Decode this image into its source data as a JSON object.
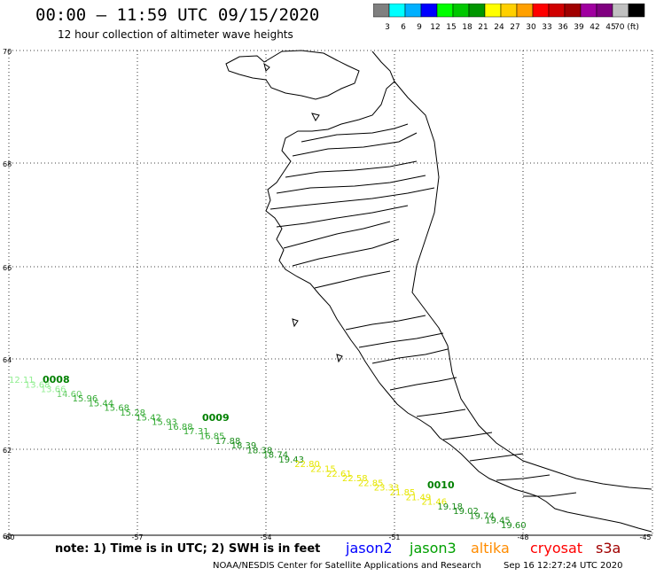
{
  "header": {
    "title": "00:00 – 11:59 UTC 09/15/2020",
    "subtitle": "12 hour collection of altimeter wave heights"
  },
  "legend": {
    "colors": [
      "#808080",
      "#00ffff",
      "#00b0ff",
      "#0000ff",
      "#00ff00",
      "#00c800",
      "#009600",
      "#ffff00",
      "#ffd000",
      "#ffa000",
      "#ff0000",
      "#d00000",
      "#a00000",
      "#a000a0",
      "#800080",
      "#c0c0c0",
      "#000000"
    ],
    "labels": [
      "3",
      "6",
      "9",
      "12",
      "15",
      "18",
      "21",
      "24",
      "27",
      "30",
      "33",
      "36",
      "39",
      "42",
      "45",
      "70 (ft)"
    ]
  },
  "map": {
    "lat_labels": [
      "70",
      "68",
      "66",
      "64",
      "62",
      "60"
    ],
    "lon_labels": [
      "-60",
      "-57",
      "-54",
      "-51",
      "-48",
      "-45"
    ],
    "passes": [
      {
        "id": "0008",
        "color": "#008000"
      },
      {
        "id": "0009",
        "color": "#008000"
      },
      {
        "id": "0010",
        "color": "#008000"
      }
    ],
    "track_values": [
      {
        "v": "12.11",
        "c": "#90ee90"
      },
      {
        "v": "13.68",
        "c": "#90ee90"
      },
      {
        "v": "13.66",
        "c": "#90ee90"
      },
      {
        "v": "14.60",
        "c": "#66cc66"
      },
      {
        "v": "15.96",
        "c": "#33aa33"
      },
      {
        "v": "15.44",
        "c": "#33aa33"
      },
      {
        "v": "15.68",
        "c": "#33aa33"
      },
      {
        "v": "15.28",
        "c": "#33aa33"
      },
      {
        "v": "15.42",
        "c": "#33aa33"
      },
      {
        "v": "15.93",
        "c": "#33aa33"
      },
      {
        "v": "16.88",
        "c": "#33aa33"
      },
      {
        "v": "17.31",
        "c": "#33aa33"
      },
      {
        "v": "16.85",
        "c": "#33aa33"
      },
      {
        "v": "17.88",
        "c": "#1a8c1a"
      },
      {
        "v": "18.39",
        "c": "#1a8c1a"
      },
      {
        "v": "18.38",
        "c": "#1a8c1a"
      },
      {
        "v": "18.74",
        "c": "#1a8c1a"
      },
      {
        "v": "19.43",
        "c": "#1a8c1a"
      },
      {
        "v": "22.80",
        "c": "#e6e600"
      },
      {
        "v": "22.15",
        "c": "#e6e600"
      },
      {
        "v": "22.61",
        "c": "#e6e600"
      },
      {
        "v": "22.58",
        "c": "#e6e600"
      },
      {
        "v": "22.85",
        "c": "#e6e600"
      },
      {
        "v": "23.33",
        "c": "#e6e600"
      },
      {
        "v": "21.85",
        "c": "#e6e600"
      },
      {
        "v": "21.49",
        "c": "#e6e600"
      },
      {
        "v": "21.46",
        "c": "#e6e600"
      },
      {
        "v": "19.18",
        "c": "#1a8c1a"
      },
      {
        "v": "19.02",
        "c": "#1a8c1a"
      },
      {
        "v": "19.74",
        "c": "#1a8c1a"
      },
      {
        "v": "19.45",
        "c": "#1a8c1a"
      },
      {
        "v": "19.60",
        "c": "#1a8c1a"
      }
    ]
  },
  "note": "note:  1) Time is in UTC;  2) SWH is in feet",
  "satellites": [
    {
      "name": "jason2",
      "color": "#0000ff"
    },
    {
      "name": "jason3",
      "color": "#00a000"
    },
    {
      "name": "altika",
      "color": "#ff8c00"
    },
    {
      "name": "cryosat",
      "color": "#ff0000"
    },
    {
      "name": "s3a",
      "color": "#a00000"
    }
  ],
  "footer": {
    "credit": "NOAA/NESDIS Center for Satellite Applications and Research",
    "timestamp": "Sep 16 12:27:24 UTC 2020"
  }
}
